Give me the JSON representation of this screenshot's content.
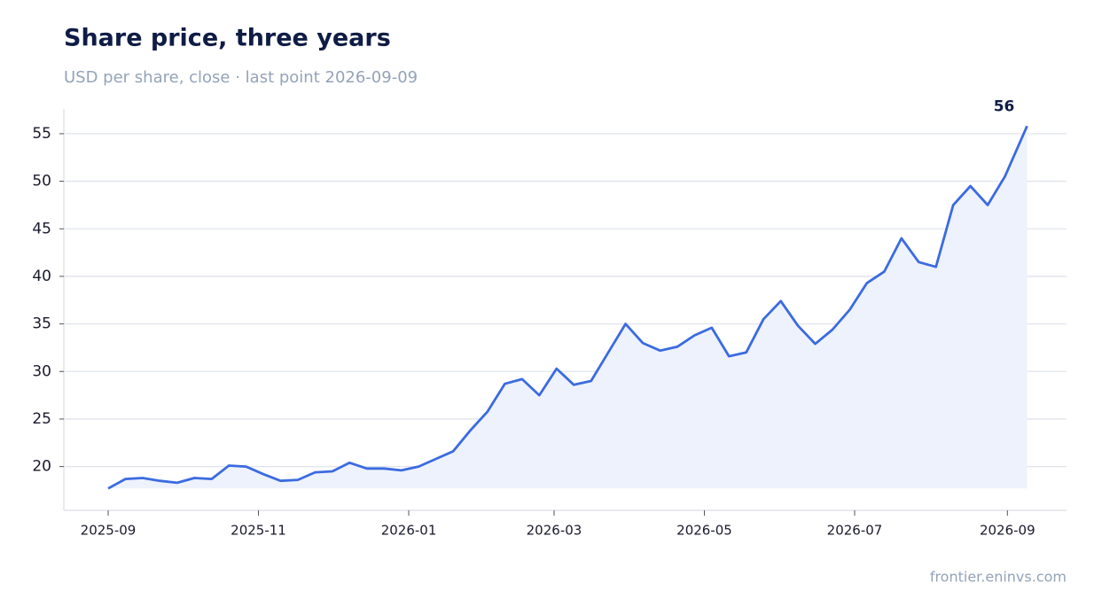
{
  "chart_data": {
    "type": "line",
    "title": "Share price, three years",
    "subtitle": "USD per share, close · last point 2026-09-09",
    "source": "frontier.eninvs.com",
    "x": [
      "2025-09-01",
      "2025-09-08",
      "2025-09-15",
      "2025-09-22",
      "2025-09-29",
      "2025-10-06",
      "2025-10-13",
      "2025-10-20",
      "2025-10-27",
      "2025-11-03",
      "2025-11-10",
      "2025-11-17",
      "2025-11-24",
      "2025-12-01",
      "2025-12-08",
      "2025-12-15",
      "2025-12-22",
      "2025-12-29",
      "2026-01-05",
      "2026-01-12",
      "2026-01-19",
      "2026-01-26",
      "2026-02-02",
      "2026-02-09",
      "2026-02-16",
      "2026-02-23",
      "2026-03-02",
      "2026-03-09",
      "2026-03-16",
      "2026-03-23",
      "2026-03-30",
      "2026-04-06",
      "2026-04-13",
      "2026-04-20",
      "2026-04-27",
      "2026-05-04",
      "2026-05-11",
      "2026-05-18",
      "2026-05-25",
      "2026-06-01",
      "2026-06-08",
      "2026-06-15",
      "2026-06-22",
      "2026-06-29",
      "2026-07-06",
      "2026-07-13",
      "2026-07-20",
      "2026-07-27",
      "2026-08-03",
      "2026-08-10",
      "2026-08-17",
      "2026-08-24",
      "2026-08-31",
      "2026-09-09"
    ],
    "series": [
      {
        "name": "Close",
        "color": "#3b6be0",
        "fill": "#eef2fd",
        "values": [
          17.7,
          18.7,
          18.8,
          18.5,
          18.3,
          18.8,
          18.7,
          20.1,
          20.0,
          19.2,
          18.5,
          18.6,
          19.4,
          19.5,
          20.4,
          19.8,
          19.8,
          19.6,
          20.0,
          20.8,
          21.6,
          23.8,
          25.8,
          28.7,
          29.2,
          27.5,
          30.3,
          28.6,
          29.0,
          32.0,
          35.0,
          33.0,
          32.2,
          32.6,
          33.8,
          34.6,
          31.6,
          32.0,
          35.5,
          37.4,
          34.8,
          32.9,
          34.4,
          36.5,
          39.3,
          40.5,
          44.0,
          41.5,
          41.0,
          47.5,
          49.5,
          47.5,
          50.5,
          55.8
        ]
      }
    ],
    "last_value_label": "56",
    "xlim": [
      "2025-08-14",
      "2026-09-25"
    ],
    "xticks": [
      "2025-09",
      "2025-11",
      "2026-01",
      "2026-03",
      "2026-05",
      "2026-07",
      "2026-09"
    ],
    "ylim": [
      15.4,
      57.6
    ],
    "yticks": [
      20,
      25,
      30,
      35,
      40,
      45,
      50,
      55
    ],
    "grid": true
  }
}
